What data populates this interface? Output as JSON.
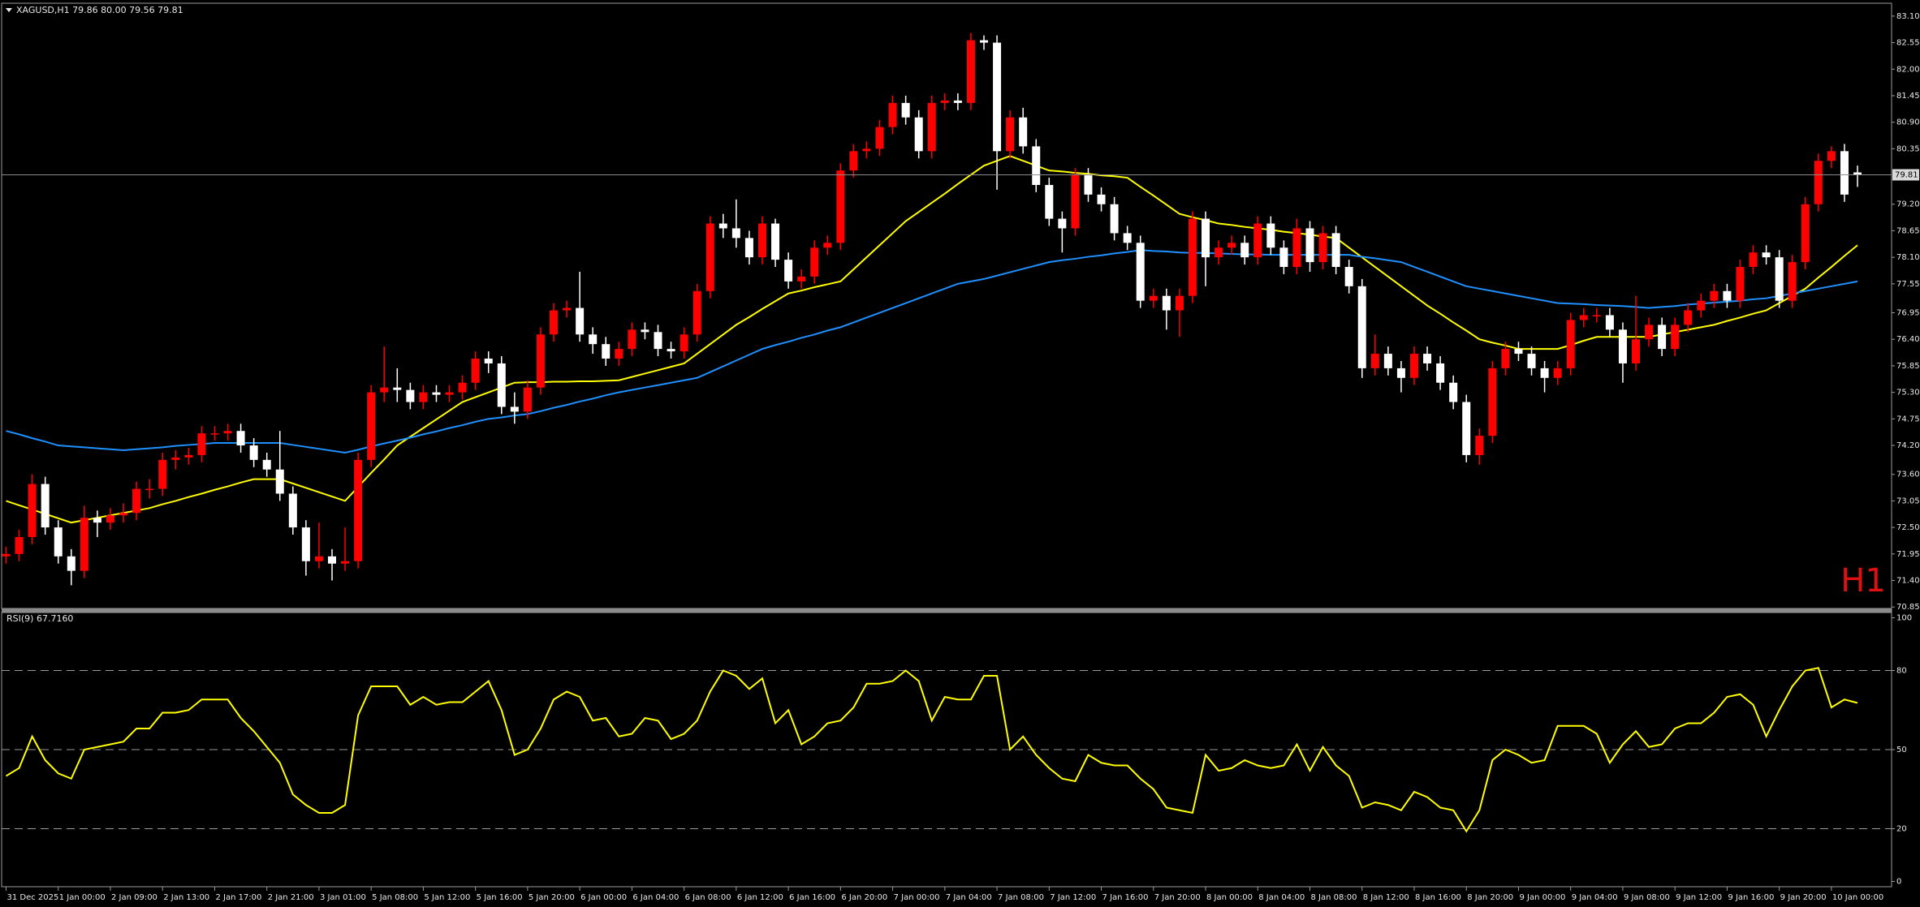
{
  "chart_data": [
    {
      "type": "candlestick",
      "title": "XAGUSD,H1  79.86 80.00 79.56 79.81",
      "timeframe_label": "H1",
      "categories": [
        "31 Dec 2025",
        null,
        null,
        null,
        "1 Jan 00:00",
        null,
        null,
        null,
        "2 Jan 09:00",
        null,
        null,
        null,
        "2 Jan 13:00",
        null,
        null,
        null,
        "2 Jan 17:00",
        null,
        null,
        null,
        "2 Jan 21:00",
        null,
        null,
        null,
        "3 Jan 01:00",
        null,
        null,
        null,
        "5 Jan 08:00",
        null,
        null,
        null,
        "5 Jan 12:00",
        null,
        null,
        null,
        "5 Jan 16:00",
        null,
        null,
        null,
        "5 Jan 20:00",
        null,
        null,
        null,
        "6 Jan 00:00",
        null,
        null,
        null,
        "6 Jan 04:00",
        null,
        null,
        null,
        "6 Jan 08:00",
        null,
        null,
        null,
        "6 Jan 12:00",
        null,
        null,
        null,
        "6 Jan 16:00",
        null,
        null,
        null,
        "6 Jan 20:00",
        null,
        null,
        null,
        "7 Jan 00:00",
        null,
        null,
        null,
        "7 Jan 04:00",
        null,
        null,
        null,
        "7 Jan 08:00",
        null,
        null,
        null,
        "7 Jan 12:00",
        null,
        null,
        null,
        "7 Jan 16:00",
        null,
        null,
        null,
        "7 Jan 20:00",
        null,
        null,
        null,
        "8 Jan 00:00",
        null,
        null,
        null,
        "8 Jan 04:00",
        null,
        null,
        null,
        "8 Jan 08:00",
        null,
        null,
        null,
        "8 Jan 12:00",
        null,
        null,
        null,
        "8 Jan 16:00",
        null,
        null,
        null,
        "8 Jan 20:00",
        null,
        null,
        null,
        "9 Jan 00:00",
        null,
        null,
        null,
        "9 Jan 04:00",
        null,
        null,
        null,
        "9 Jan 08:00",
        null,
        null,
        null,
        "9 Jan 12:00",
        null,
        null,
        null,
        "9 Jan 16:00",
        null,
        null,
        null,
        "9 Jan 20:00",
        null,
        null,
        null,
        "10 Jan 00:00",
        null,
        null
      ],
      "open": [
        71.9,
        71.95,
        72.3,
        73.4,
        72.5,
        71.9,
        71.6,
        72.7,
        72.6,
        72.75,
        72.8,
        73.3,
        73.3,
        73.9,
        73.95,
        74.0,
        74.45,
        74.45,
        74.5,
        74.2,
        73.9,
        73.7,
        73.2,
        72.5,
        71.8,
        71.9,
        71.75,
        71.8,
        73.9,
        75.3,
        75.4,
        75.35,
        75.1,
        75.3,
        75.25,
        75.3,
        75.5,
        76.0,
        75.9,
        75.0,
        74.9,
        75.4,
        76.5,
        77.0,
        77.05,
        76.5,
        76.3,
        76.0,
        76.2,
        76.6,
        76.55,
        76.2,
        76.15,
        76.5,
        77.4,
        78.8,
        78.7,
        78.5,
        78.1,
        78.8,
        78.05,
        77.6,
        77.7,
        78.3,
        78.4,
        79.9,
        80.3,
        80.35,
        80.8,
        81.3,
        81.0,
        80.3,
        81.3,
        81.35,
        81.3,
        82.6,
        82.55,
        80.3,
        81.0,
        80.4,
        79.6,
        78.9,
        78.7,
        79.8,
        79.4,
        79.2,
        78.6,
        78.4,
        77.2,
        77.3,
        77.0,
        77.3,
        78.9,
        78.1,
        78.3,
        78.4,
        78.1,
        78.8,
        78.3,
        77.9,
        78.7,
        78.0,
        78.6,
        77.9,
        77.5,
        75.8,
        76.1,
        75.8,
        75.6,
        76.1,
        75.9,
        75.5,
        75.1,
        74.0,
        74.4,
        75.8,
        76.2,
        76.1,
        75.8,
        75.6,
        75.8,
        76.8,
        76.9,
        76.9,
        76.6,
        75.9,
        76.4,
        76.7,
        76.2,
        76.7,
        77.0,
        77.2,
        77.4,
        77.2,
        77.9,
        78.2,
        78.1,
        77.2,
        78.0,
        79.2,
        80.1,
        80.3,
        79.86
      ],
      "high": [
        72.1,
        72.45,
        73.6,
        73.55,
        72.65,
        72.05,
        72.95,
        72.85,
        72.9,
        73.0,
        73.45,
        73.5,
        74.05,
        74.1,
        74.15,
        74.6,
        74.6,
        74.65,
        74.65,
        74.35,
        74.05,
        74.5,
        73.35,
        72.65,
        72.6,
        72.05,
        72.5,
        74.05,
        75.45,
        76.25,
        75.8,
        75.5,
        75.45,
        75.45,
        75.45,
        75.65,
        76.15,
        76.15,
        76.05,
        75.3,
        75.55,
        76.65,
        77.15,
        77.2,
        77.8,
        76.65,
        76.45,
        76.35,
        76.75,
        76.75,
        76.7,
        76.35,
        76.65,
        77.55,
        78.95,
        79.0,
        79.3,
        78.65,
        78.95,
        78.9,
        78.2,
        77.85,
        78.45,
        78.55,
        80.05,
        80.45,
        80.5,
        80.95,
        81.45,
        81.45,
        81.15,
        81.45,
        81.5,
        81.5,
        82.75,
        82.7,
        82.7,
        81.15,
        81.2,
        80.55,
        79.75,
        79.05,
        79.95,
        79.95,
        79.55,
        79.35,
        78.75,
        78.55,
        77.45,
        77.45,
        77.45,
        79.05,
        79.05,
        78.45,
        78.55,
        78.55,
        78.95,
        78.95,
        78.45,
        78.9,
        78.85,
        78.75,
        78.75,
        78.05,
        77.65,
        76.5,
        76.25,
        75.95,
        76.25,
        76.25,
        76.05,
        75.65,
        75.25,
        74.55,
        75.95,
        76.35,
        76.35,
        76.25,
        75.95,
        75.95,
        76.95,
        77.05,
        77.05,
        77.05,
        76.75,
        77.3,
        76.85,
        76.85,
        76.85,
        77.15,
        77.35,
        77.55,
        77.55,
        78.05,
        78.35,
        78.35,
        78.25,
        78.15,
        79.35,
        80.25,
        80.4,
        80.45,
        80.0
      ],
      "low": [
        71.75,
        71.8,
        72.15,
        72.35,
        71.75,
        71.3,
        71.45,
        72.3,
        72.45,
        72.6,
        72.65,
        73.1,
        73.15,
        73.7,
        73.8,
        73.85,
        74.3,
        74.3,
        74.05,
        73.75,
        73.55,
        73.05,
        72.35,
        71.5,
        71.65,
        71.4,
        71.6,
        71.65,
        73.75,
        75.1,
        75.1,
        74.95,
        74.95,
        75.1,
        75.1,
        75.15,
        75.35,
        75.7,
        74.85,
        74.65,
        74.75,
        75.25,
        76.35,
        76.85,
        76.35,
        76.1,
        75.85,
        75.85,
        76.05,
        76.4,
        76.05,
        76.0,
        76.0,
        76.35,
        77.25,
        78.5,
        78.3,
        77.95,
        77.95,
        77.9,
        77.45,
        77.45,
        77.55,
        78.15,
        78.25,
        79.75,
        80.15,
        80.2,
        80.65,
        80.85,
        80.15,
        80.15,
        81.15,
        81.15,
        81.15,
        82.4,
        79.5,
        80.15,
        80.25,
        79.45,
        78.75,
        78.2,
        78.55,
        79.25,
        79.05,
        78.45,
        78.25,
        77.05,
        77.05,
        76.6,
        76.45,
        77.15,
        77.5,
        77.95,
        78.15,
        77.95,
        77.95,
        78.15,
        77.75,
        77.75,
        77.8,
        77.85,
        77.75,
        77.35,
        75.6,
        75.65,
        75.65,
        75.3,
        75.45,
        75.75,
        75.35,
        74.95,
        73.85,
        73.8,
        74.25,
        75.65,
        75.95,
        75.65,
        75.3,
        75.45,
        75.65,
        76.65,
        76.75,
        76.45,
        75.5,
        75.75,
        76.25,
        76.05,
        76.05,
        76.55,
        76.85,
        77.05,
        77.05,
        77.05,
        77.75,
        77.95,
        77.05,
        77.05,
        77.85,
        79.05,
        79.95,
        79.25,
        79.56
      ],
      "close": [
        71.95,
        72.3,
        73.4,
        72.5,
        71.9,
        71.6,
        72.7,
        72.6,
        72.75,
        72.8,
        73.3,
        73.3,
        73.9,
        73.95,
        74.0,
        74.45,
        74.45,
        74.5,
        74.2,
        73.9,
        73.7,
        73.2,
        72.5,
        71.8,
        71.9,
        71.75,
        71.8,
        73.9,
        75.3,
        75.4,
        75.35,
        75.1,
        75.3,
        75.25,
        75.3,
        75.5,
        76.0,
        75.9,
        75.0,
        74.9,
        75.4,
        76.5,
        77.0,
        77.05,
        76.5,
        76.3,
        76.0,
        76.2,
        76.6,
        76.55,
        76.2,
        76.15,
        76.5,
        77.4,
        78.8,
        78.7,
        78.5,
        78.1,
        78.8,
        78.05,
        77.6,
        77.7,
        78.3,
        78.4,
        79.9,
        80.3,
        80.35,
        80.8,
        81.3,
        81.0,
        80.3,
        81.3,
        81.35,
        81.3,
        82.6,
        82.55,
        80.3,
        81.0,
        80.4,
        79.6,
        78.9,
        78.7,
        79.8,
        79.4,
        79.2,
        78.6,
        78.4,
        77.2,
        77.3,
        77.0,
        77.3,
        78.9,
        78.1,
        78.3,
        78.4,
        78.1,
        78.8,
        78.3,
        77.9,
        78.7,
        78.0,
        78.6,
        77.9,
        77.5,
        75.8,
        76.1,
        75.8,
        75.6,
        76.1,
        75.9,
        75.5,
        75.1,
        74.0,
        74.4,
        75.8,
        76.2,
        76.1,
        75.8,
        75.6,
        75.8,
        76.8,
        76.9,
        76.9,
        76.6,
        75.9,
        76.4,
        76.7,
        76.2,
        76.7,
        77.0,
        77.2,
        77.4,
        77.2,
        77.9,
        78.2,
        78.1,
        77.2,
        78.0,
        79.2,
        80.1,
        80.3,
        79.4,
        79.81
      ],
      "up_color": "#ff0000",
      "down_color": "#ffffff",
      "overlays": [
        {
          "color": "#ffff00",
          "values": [
            73.05,
            72.96,
            72.87,
            72.78,
            72.69,
            72.6,
            72.65,
            72.7,
            72.75,
            72.8,
            72.85,
            72.9,
            72.98,
            73.05,
            73.13,
            73.2,
            73.28,
            73.35,
            73.43,
            73.5,
            73.5,
            73.5,
            73.41,
            73.32,
            73.23,
            73.14,
            73.05,
            73.34,
            73.63,
            73.91,
            74.2,
            74.38,
            74.56,
            74.74,
            74.92,
            75.1,
            75.2,
            75.3,
            75.4,
            75.5,
            75.51,
            75.51,
            75.52,
            75.52,
            75.53,
            75.53,
            75.54,
            75.55,
            75.62,
            75.69,
            75.76,
            75.83,
            75.9,
            76.1,
            76.3,
            76.5,
            76.7,
            76.86,
            77.03,
            77.19,
            77.35,
            77.41,
            77.48,
            77.54,
            77.6,
            77.85,
            78.1,
            78.35,
            78.6,
            78.85,
            79.04,
            79.23,
            79.42,
            79.62,
            79.81,
            80.0,
            80.1,
            80.2,
            80.1,
            80.0,
            79.9,
            79.88,
            79.85,
            79.83,
            79.8,
            79.78,
            79.75,
            79.56,
            79.38,
            79.19,
            79.0,
            78.93,
            78.87,
            78.8,
            78.77,
            78.73,
            78.7,
            78.67,
            78.63,
            78.6,
            78.57,
            78.53,
            78.5,
            78.3,
            78.1,
            77.9,
            77.7,
            77.5,
            77.3,
            77.1,
            76.93,
            76.75,
            76.58,
            76.4,
            76.33,
            76.27,
            76.2,
            76.2,
            76.2,
            76.2,
            76.28,
            76.37,
            76.45,
            76.45,
            76.45,
            76.45,
            76.45,
            76.5,
            76.55,
            76.6,
            76.65,
            76.7,
            76.78,
            76.85,
            76.93,
            77.0,
            77.15,
            77.3,
            77.45,
            77.68,
            77.9,
            78.13,
            78.35
          ]
        },
        {
          "color": "#1e90ff",
          "values": [
            74.5,
            74.43,
            74.35,
            74.28,
            74.2,
            74.18,
            74.16,
            74.14,
            74.12,
            74.1,
            74.12,
            74.14,
            74.16,
            74.19,
            74.21,
            74.23,
            74.25,
            74.25,
            74.25,
            74.25,
            74.25,
            74.25,
            74.21,
            74.17,
            74.13,
            74.09,
            74.05,
            74.11,
            74.18,
            74.24,
            74.3,
            74.36,
            74.43,
            74.49,
            74.56,
            74.62,
            74.69,
            74.75,
            74.78,
            74.82,
            74.85,
            74.91,
            74.98,
            75.04,
            75.11,
            75.17,
            75.24,
            75.3,
            75.35,
            75.4,
            75.45,
            75.5,
            75.55,
            75.6,
            75.72,
            75.84,
            75.96,
            76.08,
            76.2,
            76.28,
            76.35,
            76.43,
            76.5,
            76.58,
            76.65,
            76.75,
            76.85,
            76.95,
            77.05,
            77.15,
            77.25,
            77.35,
            77.45,
            77.55,
            77.6,
            77.65,
            77.72,
            77.79,
            77.86,
            77.93,
            78.0,
            78.04,
            78.07,
            78.11,
            78.14,
            78.18,
            78.21,
            78.25,
            78.23,
            78.22,
            78.2,
            78.19,
            78.19,
            78.18,
            78.17,
            78.16,
            78.16,
            78.15,
            78.15,
            78.15,
            78.15,
            78.15,
            78.15,
            78.15,
            78.11,
            78.08,
            78.04,
            78.0,
            77.9,
            77.8,
            77.7,
            77.6,
            77.5,
            77.45,
            77.4,
            77.35,
            77.3,
            77.25,
            77.2,
            77.15,
            77.14,
            77.13,
            77.11,
            77.1,
            77.09,
            77.07,
            77.05,
            77.07,
            77.09,
            77.12,
            77.14,
            77.16,
            77.18,
            77.2,
            77.23,
            77.25,
            77.3,
            77.35,
            77.4,
            77.45,
            77.5,
            77.55,
            77.6
          ]
        }
      ],
      "ylim": [
        70.82,
        83.35
      ],
      "yticks": [
        {
          "value": 83.1,
          "label": "83.10"
        },
        82.55,
        {
          "value": 82.0,
          "label": "82.00"
        },
        81.45,
        {
          "value": 80.9,
          "label": "80.90"
        },
        80.35,
        {
          "value": 79.2,
          "label": "79.20"
        },
        78.65,
        {
          "value": 78.1,
          "label": "78.10"
        },
        77.55,
        76.95,
        {
          "value": 76.4,
          "label": "76.40"
        },
        75.85,
        {
          "value": 75.3,
          "label": "75.30"
        },
        74.75,
        {
          "value": 74.2,
          "label": "74.20"
        },
        {
          "value": 73.6,
          "label": "73.60"
        },
        73.05,
        {
          "value": 72.5,
          "label": "72.50"
        },
        71.95,
        {
          "value": 71.4,
          "label": "71.40"
        },
        70.85
      ]
    },
    {
      "type": "line",
      "title": "RSI(9) 67.7160",
      "color": "#ffff00",
      "values": [
        40,
        43,
        55,
        46,
        41,
        39,
        50,
        51,
        52,
        53,
        58,
        58,
        64,
        64,
        65,
        69,
        69,
        69,
        62,
        57,
        51,
        45,
        33,
        29,
        26,
        26,
        29,
        63,
        74,
        74,
        74,
        67,
        70,
        67,
        68,
        68,
        72,
        76,
        65,
        48,
        50,
        58,
        69,
        72,
        70,
        61,
        62,
        55,
        56,
        62,
        61,
        54,
        56,
        61,
        72,
        80,
        78,
        73,
        77,
        60,
        65,
        52,
        55,
        60,
        61,
        66,
        75,
        75,
        76,
        80,
        76,
        61,
        70,
        69,
        69,
        78,
        78,
        50,
        55,
        48,
        43,
        39,
        38,
        48,
        45,
        44,
        44,
        39,
        35,
        28,
        27,
        26,
        48,
        42,
        43,
        46,
        44,
        43,
        44,
        52,
        42,
        51,
        44,
        40,
        28,
        30,
        29,
        27,
        34,
        32,
        28,
        27,
        19,
        27,
        46,
        50,
        48,
        45,
        46,
        59,
        59,
        59,
        56,
        45,
        52,
        57,
        51,
        52,
        58,
        60,
        60,
        64,
        70,
        71,
        67,
        55,
        65,
        74,
        80,
        81,
        66,
        69,
        67.716
      ],
      "ylim": [
        -2,
        102
      ],
      "yticks": [
        100,
        80,
        50,
        20,
        0
      ],
      "levels": [
        80,
        50,
        20
      ]
    }
  ]
}
